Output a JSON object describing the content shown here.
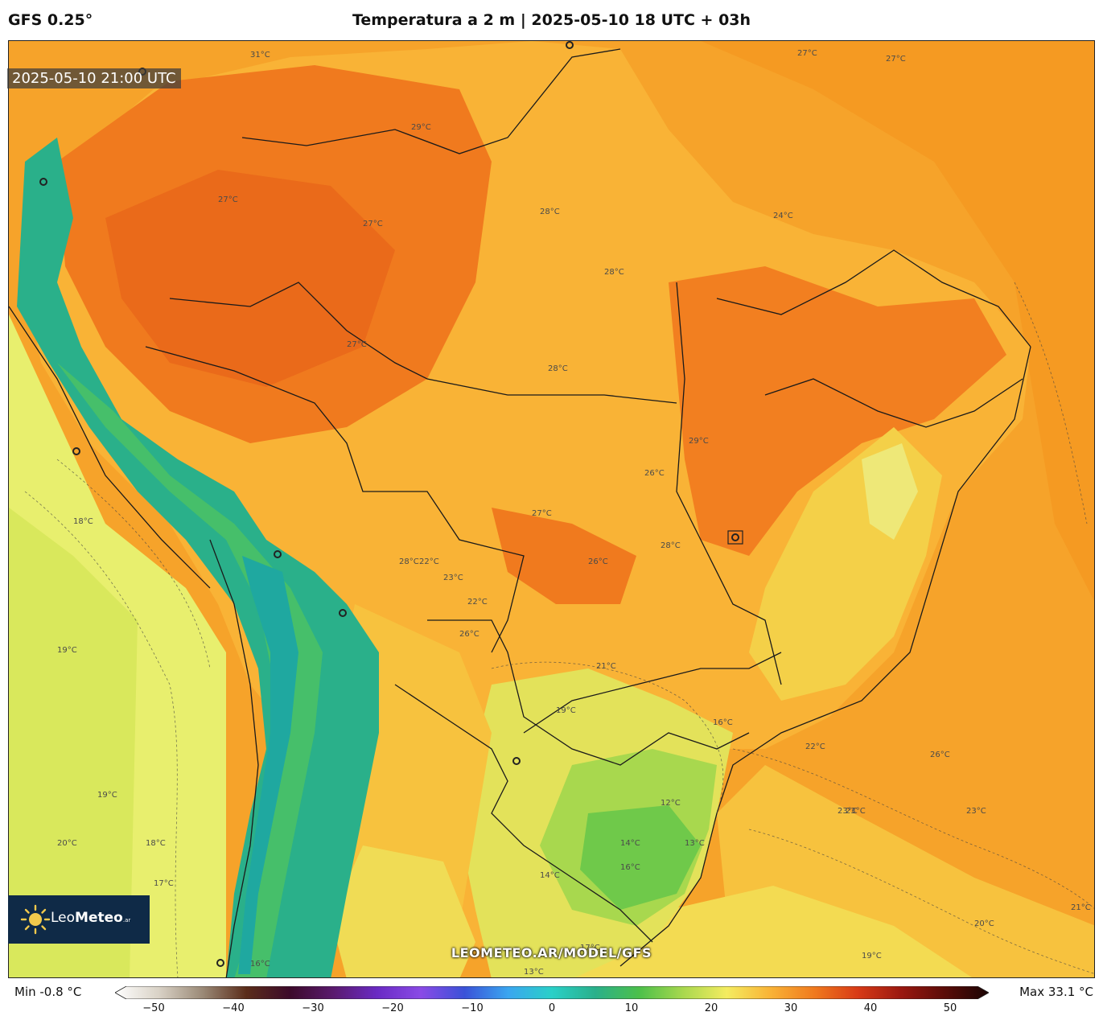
{
  "header": {
    "model": "GFS 0.25°",
    "title": "Temperatura a 2 m | 2025-05-10 18 UTC + 03h"
  },
  "map": {
    "valid_time": "2025-05-10 21:00 UTC",
    "watermark": "LEOMETEO.AR/MODEL/GFS",
    "contour_labels": [
      "31°C",
      "29°C",
      "27°C",
      "27°C",
      "27°C",
      "27°C",
      "28°C",
      "28°C",
      "27°C",
      "28°C",
      "26°C",
      "24°C",
      "28°C",
      "29°C",
      "27°C",
      "26°C",
      "28°C",
      "22°C",
      "23°C",
      "22°C",
      "26°C",
      "21°C",
      "19°C",
      "16°C",
      "12°C",
      "14°C",
      "16°C",
      "13°C",
      "23°C",
      "26°C",
      "22°C",
      "23°C",
      "20°C",
      "19°C",
      "19°C",
      "18°C",
      "20°C",
      "19°C",
      "18°C",
      "17°C",
      "16°C",
      "13°C",
      "14°C",
      "17°C",
      "23°C",
      "21°C"
    ],
    "region_colors": {
      "ocean_warm": "#f6a32a",
      "hot": "#f07a1e",
      "warm": "#f9b638",
      "mild": "#f4dc4e",
      "cool": "#cfe25a",
      "cold": "#6fc94a",
      "andes": "#2ab08a",
      "pacific": "#e8ef6e"
    }
  },
  "colorbar": {
    "min_label": "Min -0.8 °C",
    "max_label": "Max 33.1 °C",
    "ticks": [
      "−50",
      "−40",
      "−30",
      "−20",
      "−10",
      "0",
      "10",
      "20",
      "30",
      "40",
      "50"
    ],
    "range": [
      -50,
      50
    ]
  },
  "logo": {
    "brand_light": "Leo",
    "brand_bold": "Meteo",
    "suffix": ".ar"
  }
}
